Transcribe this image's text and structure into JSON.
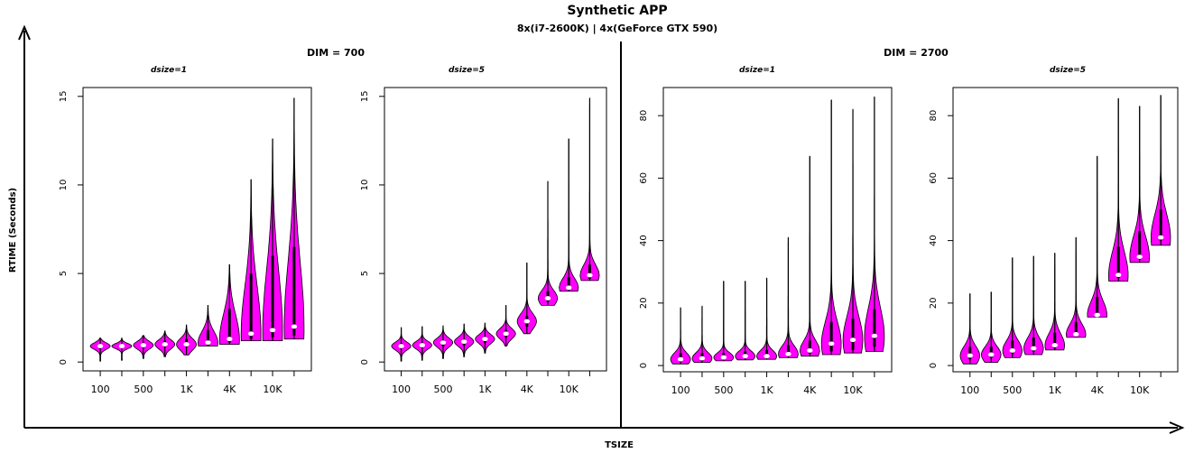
{
  "title": "Synthetic APP",
  "subtitle": "8x(i7-2600K) | 4x(GeForce GTX 590)",
  "xlabel": "TSIZE",
  "ylabel": "RTIME (Seconds)",
  "colors": {
    "violin_fill": "#ff00ff",
    "median_dot": "#ffffff",
    "line": "#000000"
  },
  "chart_data": [
    {
      "type": "violin",
      "group": "DIM = 700",
      "panel": "dsize=1",
      "ylim": [
        -0.5,
        15.5
      ],
      "yticks": [
        0,
        5,
        10,
        15
      ],
      "x_tick_labels": [
        "100",
        "500",
        "1K",
        "4K",
        "10K"
      ],
      "x_tick_positions": [
        1,
        3,
        5,
        7,
        9
      ],
      "series": [
        {
          "median": 0.9,
          "min": 0.05,
          "max": 1.35,
          "q1": 0.75,
          "q3": 1.0
        },
        {
          "median": 0.9,
          "min": 0.1,
          "max": 1.35,
          "q1": 0.8,
          "q3": 1.0
        },
        {
          "median": 0.95,
          "min": 0.2,
          "max": 1.5,
          "q1": 0.8,
          "q3": 1.1
        },
        {
          "median": 1.0,
          "min": 0.3,
          "max": 1.75,
          "q1": 0.85,
          "q3": 1.2
        },
        {
          "median": 1.0,
          "min": 0.4,
          "max": 2.1,
          "q1": 0.85,
          "q3": 1.3
        },
        {
          "median": 1.1,
          "min": 0.9,
          "max": 3.2,
          "q1": 0.95,
          "q3": 1.8
        },
        {
          "median": 1.3,
          "min": 1.0,
          "max": 5.5,
          "q1": 1.1,
          "q3": 3.0
        },
        {
          "median": 1.6,
          "min": 1.2,
          "max": 10.3,
          "q1": 1.3,
          "q3": 5.0
        },
        {
          "median": 1.8,
          "min": 1.2,
          "max": 12.6,
          "q1": 1.4,
          "q3": 6.0
        },
        {
          "median": 2.0,
          "min": 1.3,
          "max": 14.9,
          "q1": 1.5,
          "q3": 6.5
        }
      ]
    },
    {
      "type": "violin",
      "group": "DIM = 700",
      "panel": "dsize=5",
      "ylim": [
        -0.5,
        15.5
      ],
      "yticks": [
        0,
        5,
        10,
        15
      ],
      "x_tick_labels": [
        "100",
        "500",
        "1K",
        "4K",
        "10K"
      ],
      "x_tick_positions": [
        1,
        3,
        5,
        7,
        9
      ],
      "series": [
        {
          "median": 0.9,
          "min": 0.05,
          "max": 1.95,
          "q1": 0.75,
          "q3": 1.05
        },
        {
          "median": 0.95,
          "min": 0.1,
          "max": 2.0,
          "q1": 0.8,
          "q3": 1.1
        },
        {
          "median": 1.1,
          "min": 0.2,
          "max": 2.05,
          "q1": 0.9,
          "q3": 1.25
        },
        {
          "median": 1.15,
          "min": 0.3,
          "max": 2.15,
          "q1": 0.95,
          "q3": 1.3
        },
        {
          "median": 1.3,
          "min": 0.5,
          "max": 2.2,
          "q1": 1.1,
          "q3": 1.45
        },
        {
          "median": 1.6,
          "min": 0.9,
          "max": 3.2,
          "q1": 1.4,
          "q3": 1.8
        },
        {
          "median": 2.3,
          "min": 1.6,
          "max": 5.6,
          "q1": 2.0,
          "q3": 2.6
        },
        {
          "median": 3.6,
          "min": 3.2,
          "max": 10.2,
          "q1": 3.4,
          "q3": 4.0
        },
        {
          "median": 4.2,
          "min": 4.0,
          "max": 12.6,
          "q1": 4.1,
          "q3": 4.8
        },
        {
          "median": 4.9,
          "min": 4.6,
          "max": 14.9,
          "q1": 4.7,
          "q3": 5.5
        }
      ]
    },
    {
      "type": "violin",
      "group": "DIM = 2700",
      "panel": "dsize=1",
      "ylim": [
        -2,
        89
      ],
      "yticks": [
        0,
        20,
        40,
        60,
        80
      ],
      "x_tick_labels": [
        "100",
        "500",
        "1K",
        "4K",
        "10K"
      ],
      "x_tick_positions": [
        1,
        3,
        5,
        7,
        9
      ],
      "series": [
        {
          "median": 2.0,
          "min": 0.5,
          "max": 18.5,
          "q1": 1.2,
          "q3": 4.0
        },
        {
          "median": 2.3,
          "min": 1.0,
          "max": 19.0,
          "q1": 1.5,
          "q3": 4.0
        },
        {
          "median": 2.6,
          "min": 1.5,
          "max": 27.0,
          "q1": 2.0,
          "q3": 4.0
        },
        {
          "median": 3.0,
          "min": 1.8,
          "max": 27.0,
          "q1": 2.3,
          "q3": 4.5
        },
        {
          "median": 3.0,
          "min": 2.0,
          "max": 28.0,
          "q1": 2.5,
          "q3": 5.0
        },
        {
          "median": 3.7,
          "min": 2.5,
          "max": 41.0,
          "q1": 3.0,
          "q3": 6.5
        },
        {
          "median": 4.8,
          "min": 3.0,
          "max": 67.0,
          "q1": 3.8,
          "q3": 8.0
        },
        {
          "median": 7.0,
          "min": 3.5,
          "max": 85.0,
          "q1": 4.5,
          "q3": 14.0
        },
        {
          "median": 8.2,
          "min": 4.0,
          "max": 82.0,
          "q1": 5.0,
          "q3": 15.0
        },
        {
          "median": 9.5,
          "min": 4.5,
          "max": 86.0,
          "q1": 6.0,
          "q3": 18.0
        }
      ]
    },
    {
      "type": "violin",
      "group": "DIM = 2700",
      "panel": "dsize=5",
      "ylim": [
        -2,
        89
      ],
      "yticks": [
        0,
        20,
        40,
        60,
        80
      ],
      "x_tick_labels": [
        "100",
        "500",
        "1K",
        "4K",
        "10K"
      ],
      "x_tick_positions": [
        1,
        3,
        5,
        7,
        9
      ],
      "series": [
        {
          "median": 3.2,
          "min": 0.5,
          "max": 23.0,
          "q1": 2.0,
          "q3": 6.0
        },
        {
          "median": 3.5,
          "min": 1.0,
          "max": 23.5,
          "q1": 2.5,
          "q3": 6.0
        },
        {
          "median": 4.8,
          "min": 2.5,
          "max": 34.5,
          "q1": 3.8,
          "q3": 8.0
        },
        {
          "median": 5.5,
          "min": 3.5,
          "max": 35.0,
          "q1": 4.5,
          "q3": 9.0
        },
        {
          "median": 6.5,
          "min": 5.0,
          "max": 36.0,
          "q1": 5.5,
          "q3": 10.5
        },
        {
          "median": 10.0,
          "min": 9.0,
          "max": 41.0,
          "q1": 9.5,
          "q3": 14.0
        },
        {
          "median": 16.2,
          "min": 15.5,
          "max": 67.0,
          "q1": 16.0,
          "q3": 22.0
        },
        {
          "median": 29.0,
          "min": 27.0,
          "max": 85.5,
          "q1": 28.0,
          "q3": 38.0
        },
        {
          "median": 34.8,
          "min": 33.0,
          "max": 83.0,
          "q1": 34.0,
          "q3": 43.0
        },
        {
          "median": 41.0,
          "min": 38.5,
          "max": 86.5,
          "q1": 40.0,
          "q3": 50.0
        }
      ]
    }
  ]
}
